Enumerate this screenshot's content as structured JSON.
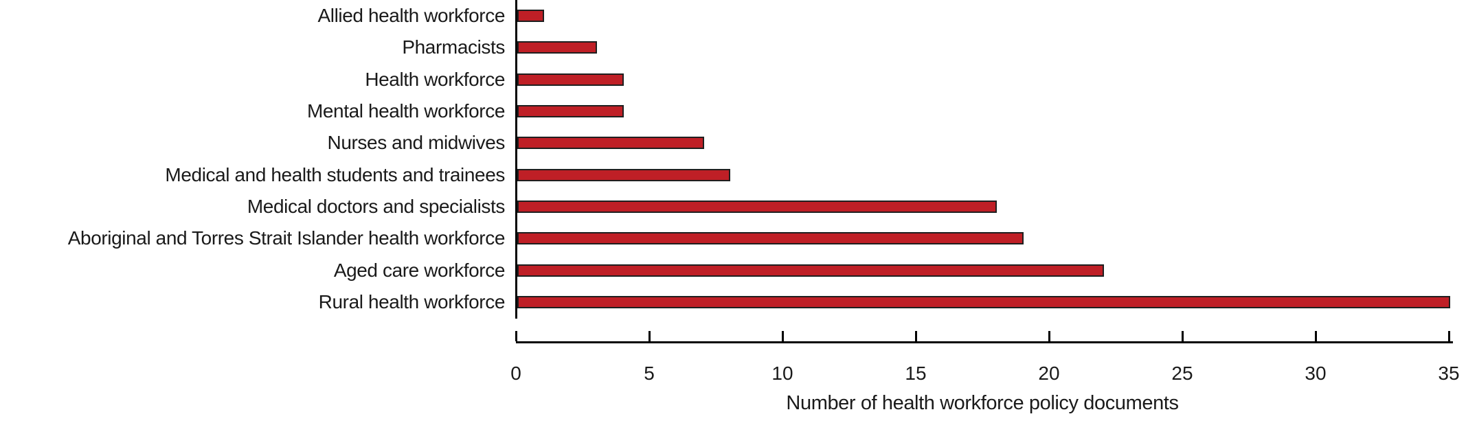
{
  "chart_data": {
    "type": "bar",
    "orientation": "horizontal",
    "categories": [
      "Allied health workforce",
      "Pharmacists",
      "Health workforce",
      "Mental health workforce",
      "Nurses and midwives",
      "Medical and health students and trainees",
      "Medical doctors and specialists",
      "Aboriginal and Torres Strait Islander health workforce",
      "Aged care workforce",
      "Rural health workforce"
    ],
    "values": [
      1,
      3,
      4,
      4,
      7,
      8,
      18,
      19,
      22,
      35
    ],
    "xlabel": "Number of health workforce policy documents",
    "xlim": [
      0,
      35
    ],
    "xticks": [
      0,
      5,
      10,
      15,
      20,
      25,
      30,
      35
    ],
    "grid": false,
    "bar_color": "#bf1f26",
    "bar_edge_color": "#1f1f1f",
    "axis_color": "#000000",
    "text_color": "#1a1a1a",
    "background_color": "#ffffff"
  }
}
